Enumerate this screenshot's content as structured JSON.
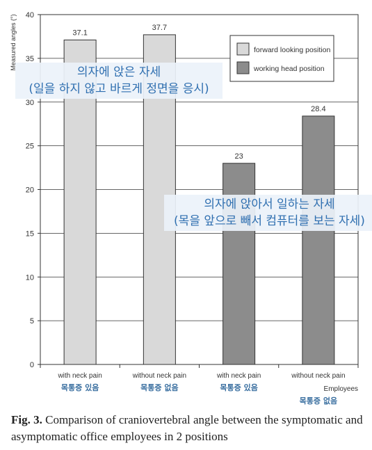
{
  "chart_data": {
    "type": "bar",
    "categories": [
      "with neck pain",
      "without neck pain",
      "with neck pain",
      "without neck pain"
    ],
    "categories_ko": [
      "목통증 있음",
      "목통증 없음",
      "목통증 있음",
      "목통증 없음"
    ],
    "values": [
      37.1,
      37.7,
      23,
      28.4
    ],
    "value_labels": [
      "37.1",
      "37.7",
      "23",
      "28.4"
    ],
    "bar_series": [
      0,
      0,
      1,
      1
    ],
    "series": [
      {
        "name": "forward looking position",
        "color": "#d9d9d9"
      },
      {
        "name": "working head position",
        "color": "#8c8c8c"
      }
    ],
    "ylabel": "Measured angles (°)",
    "xlabel": "Employees",
    "ylim": [
      0,
      40
    ],
    "yticks": [
      0,
      5,
      10,
      15,
      20,
      25,
      30,
      35,
      40
    ],
    "grid": true,
    "legend_position": "top-right"
  },
  "annotations": {
    "note1_line1": "의자에 앉은 자세",
    "note1_line2": "(일을 하지 않고 바르게 정면을 응시)",
    "note2_line1": "의자에 앉아서 일하는 자세",
    "note2_line2": "(목을 앞으로 빼서 컴퓨터를 보는 자세)"
  },
  "caption": {
    "label": "Fig. 3.",
    "text": " Comparison of craniovertebral angle between the symptomatic and asymptomatic office employees in 2 positions"
  }
}
